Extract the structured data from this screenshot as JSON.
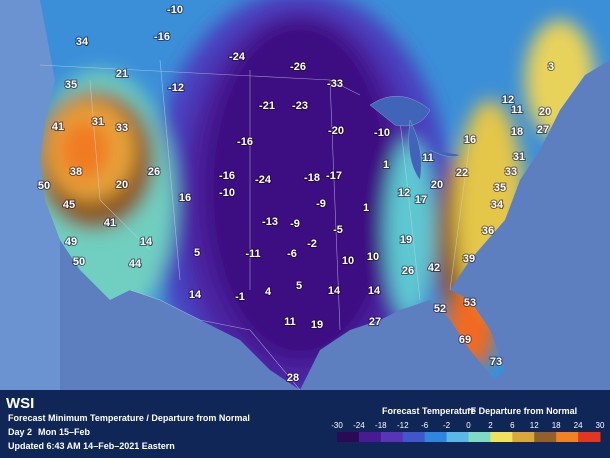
{
  "brand": "WSI",
  "title": "Forecast Minimum Temperature / Departure from Normal",
  "day": "Day 2",
  "date": "Mon 15–Feb",
  "updated": "Updated 6:43 AM 14–Feb–2021 Eastern",
  "legend": {
    "title": "Forecast Temperature",
    "unit": "°F Departure from Normal",
    "ticks": [
      -30,
      -24,
      -18,
      -12,
      -6,
      -2,
      0,
      2,
      6,
      12,
      18,
      24,
      30
    ],
    "colors": [
      "#2a0a55",
      "#4a1a95",
      "#5a34b8",
      "#3f56cc",
      "#2f86de",
      "#5ab8e6",
      "#7fdcc4",
      "#f0e35a",
      "#d9a838",
      "#94602a",
      "#f08224",
      "#e2361e"
    ]
  },
  "labels": [
    -10,
    -16,
    -24,
    -26,
    34,
    21,
    35,
    -12,
    -33,
    -21,
    -23,
    41,
    31,
    33,
    -20,
    -10,
    12,
    3,
    11,
    20,
    18,
    27,
    16,
    -16,
    11,
    31,
    1,
    -16,
    -24,
    -18,
    -17,
    22,
    33,
    38,
    26,
    20,
    50,
    -10,
    12,
    20,
    35,
    16,
    17,
    -9,
    1,
    45,
    34,
    -13,
    -9,
    -5,
    36,
    41,
    19,
    -2,
    14,
    49,
    5,
    -11,
    -6,
    10,
    10,
    26,
    42,
    39,
    44,
    50,
    14,
    -1,
    4,
    5,
    14,
    14,
    53,
    52,
    11,
    19,
    27,
    69,
    73,
    28
  ]
}
